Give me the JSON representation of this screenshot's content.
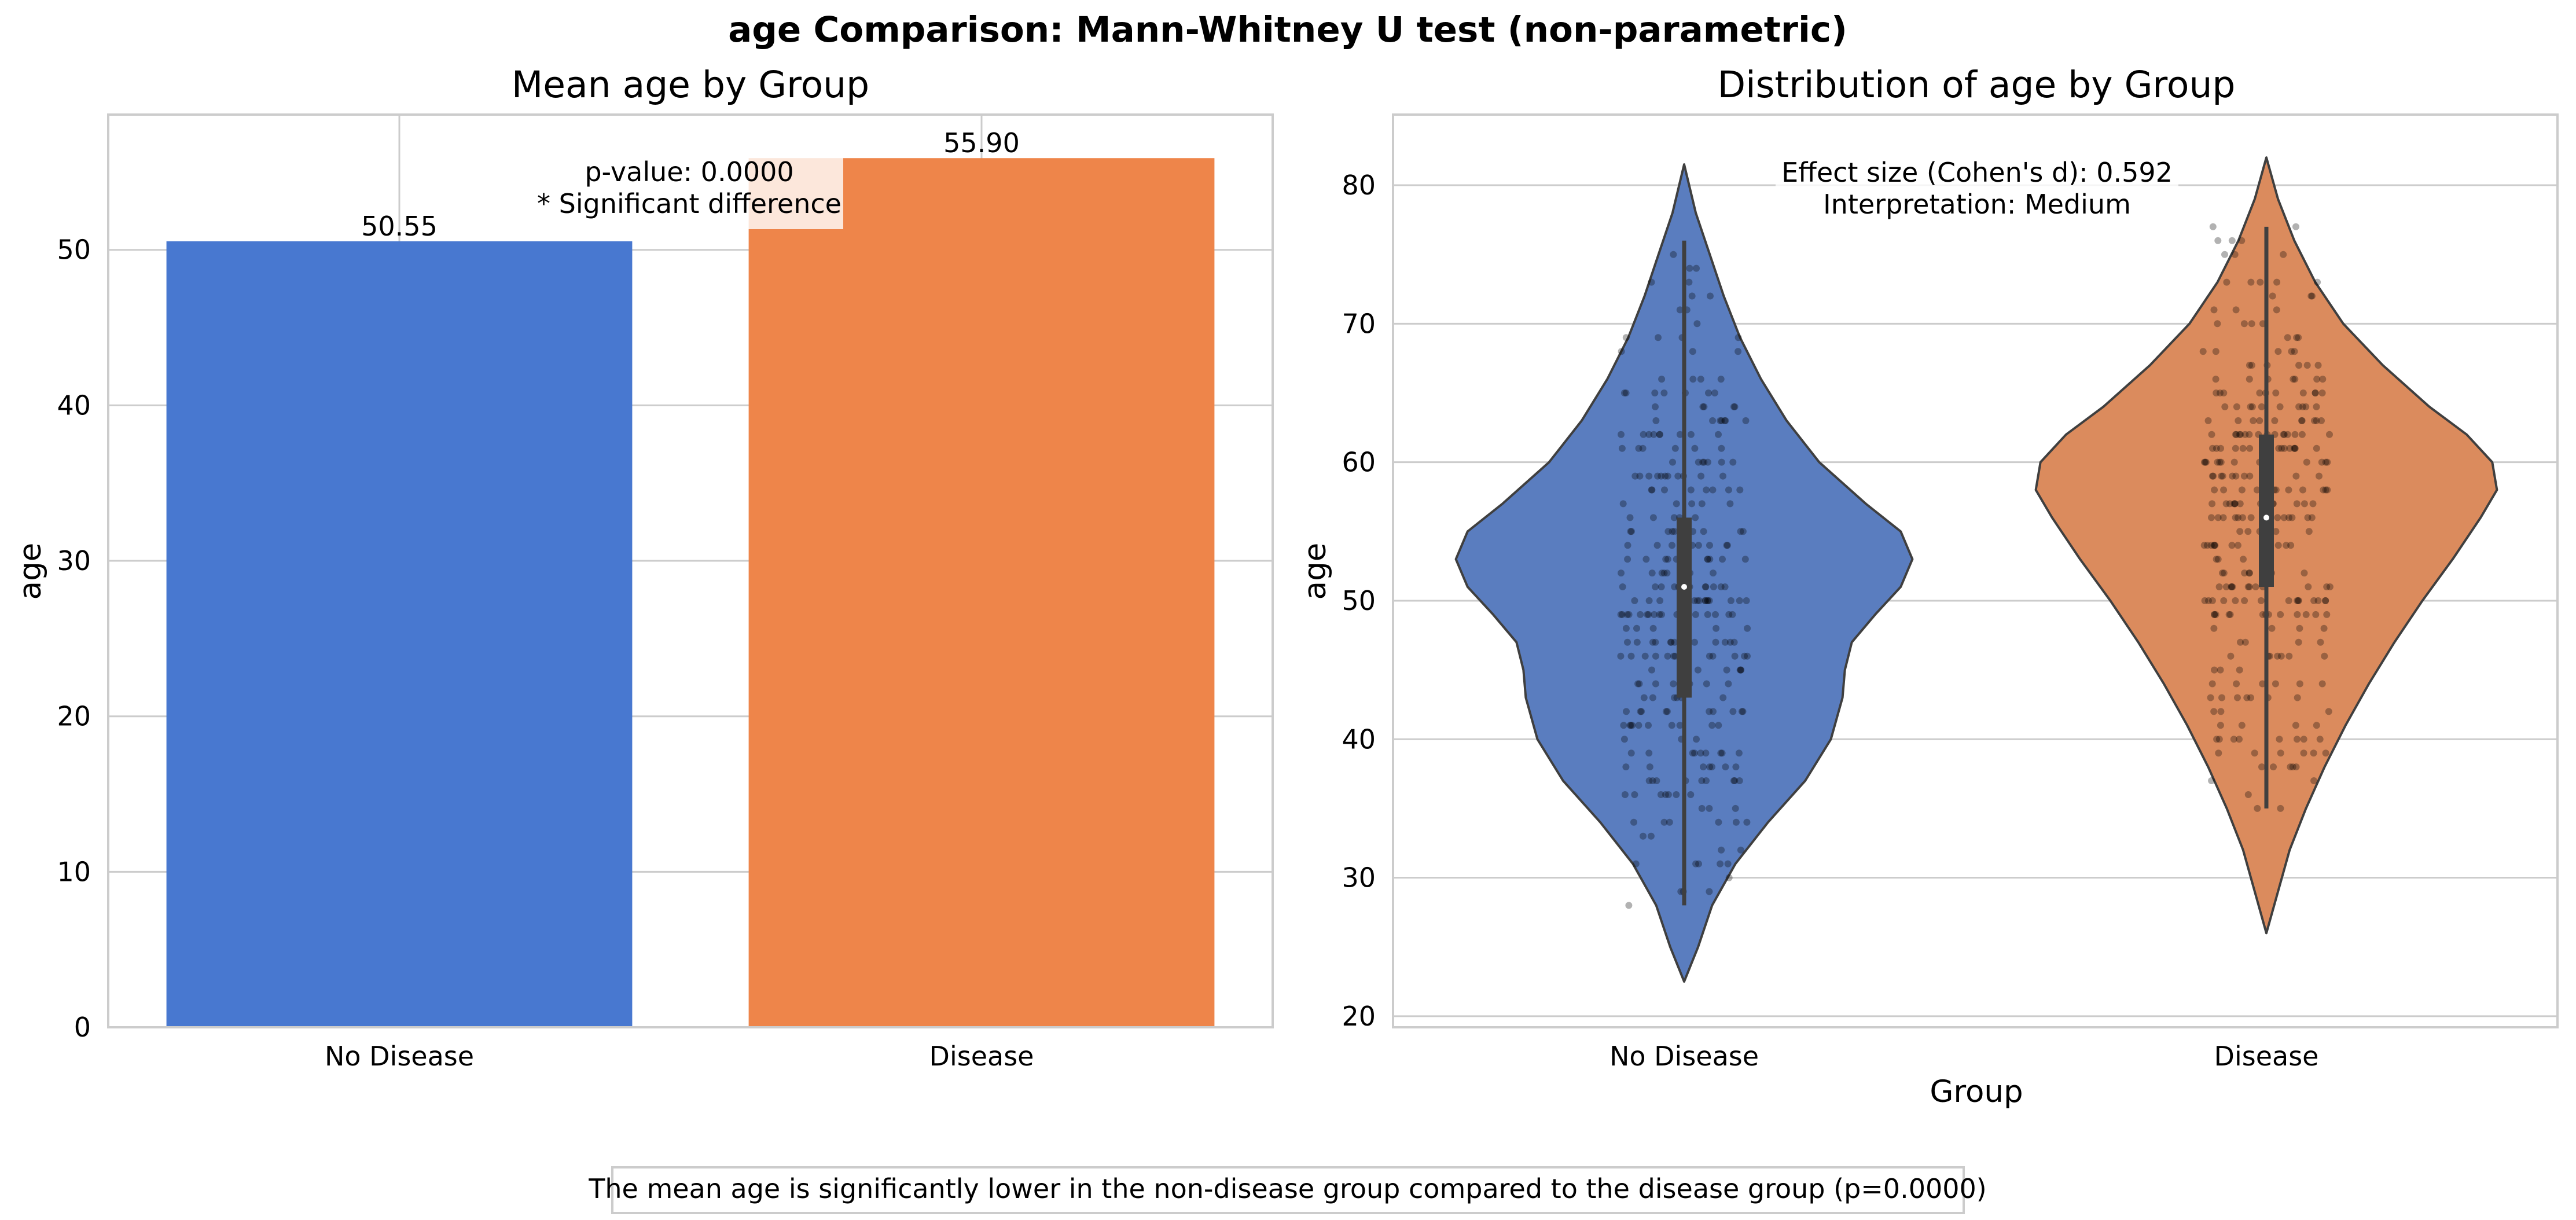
{
  "figure_title": "age Comparison: Mann-Whitney U test (non-parametric)",
  "conclusion": "The mean age is significantly lower in the non-disease group compared to the disease group (p=0.0000)",
  "colors": {
    "no_disease": "#4878d0",
    "disease": "#ee854a",
    "violin_no_disease": "#5a7dbf",
    "violin_disease": "#db8b5d",
    "grid": "#cccccc",
    "text": "#262626"
  },
  "chart_data": [
    {
      "type": "bar",
      "title": "Mean age by Group",
      "xlabel": "",
      "ylabel": "age",
      "categories": [
        "No Disease",
        "Disease"
      ],
      "values": [
        50.55,
        55.9
      ],
      "value_labels": [
        "50.55",
        "55.90"
      ],
      "ylim": [
        0,
        58.7
      ],
      "yticks": [
        0,
        10,
        20,
        30,
        40,
        50
      ],
      "grid": true,
      "annotation": {
        "line1": "p-value: 0.0000",
        "line2": "* Significant difference"
      }
    },
    {
      "type": "violin",
      "title": "Distribution of age by Group",
      "xlabel": "Group",
      "ylabel": "age",
      "categories": [
        "No Disease",
        "Disease"
      ],
      "ylim": [
        19.2,
        85.1
      ],
      "yticks": [
        20,
        30,
        40,
        50,
        60,
        70,
        80
      ],
      "grid": true,
      "series": [
        {
          "category": "No Disease",
          "min": 22.5,
          "max": 81.5,
          "whisker": [
            28,
            76
          ],
          "q1": 43,
          "median": 51,
          "q3": 56,
          "density": [
            [
              22.5,
              0
            ],
            [
              25,
              0.06
            ],
            [
              28,
              0.12
            ],
            [
              31,
              0.22
            ],
            [
              34,
              0.36
            ],
            [
              37,
              0.52
            ],
            [
              40,
              0.63
            ],
            [
              43,
              0.68
            ],
            [
              45,
              0.69
            ],
            [
              47,
              0.72
            ],
            [
              49,
              0.82
            ],
            [
              51,
              0.93
            ],
            [
              53,
              0.98
            ],
            [
              55,
              0.93
            ],
            [
              57,
              0.78
            ],
            [
              60,
              0.58
            ],
            [
              63,
              0.44
            ],
            [
              66,
              0.33
            ],
            [
              69,
              0.24
            ],
            [
              72,
              0.17
            ],
            [
              75,
              0.11
            ],
            [
              78,
              0.05
            ],
            [
              81.5,
              0
            ]
          ]
        },
        {
          "category": "Disease",
          "min": 26,
          "max": 82,
          "whisker": [
            35,
            77
          ],
          "q1": 51,
          "median": 56,
          "q3": 62,
          "density": [
            [
              26,
              0
            ],
            [
              29,
              0.05
            ],
            [
              32,
              0.1
            ],
            [
              35,
              0.17
            ],
            [
              38,
              0.25
            ],
            [
              41,
              0.34
            ],
            [
              44,
              0.44
            ],
            [
              47,
              0.55
            ],
            [
              50,
              0.67
            ],
            [
              53,
              0.8
            ],
            [
              56,
              0.92
            ],
            [
              58,
              0.99
            ],
            [
              60,
              0.97
            ],
            [
              62,
              0.86
            ],
            [
              64,
              0.7
            ],
            [
              67,
              0.5
            ],
            [
              70,
              0.33
            ],
            [
              73,
              0.21
            ],
            [
              76,
              0.12
            ],
            [
              79,
              0.05
            ],
            [
              82,
              0
            ]
          ]
        }
      ],
      "annotation": {
        "line1": "Effect size (Cohen's d): 0.592",
        "line2": "Interpretation: Medium"
      }
    }
  ]
}
